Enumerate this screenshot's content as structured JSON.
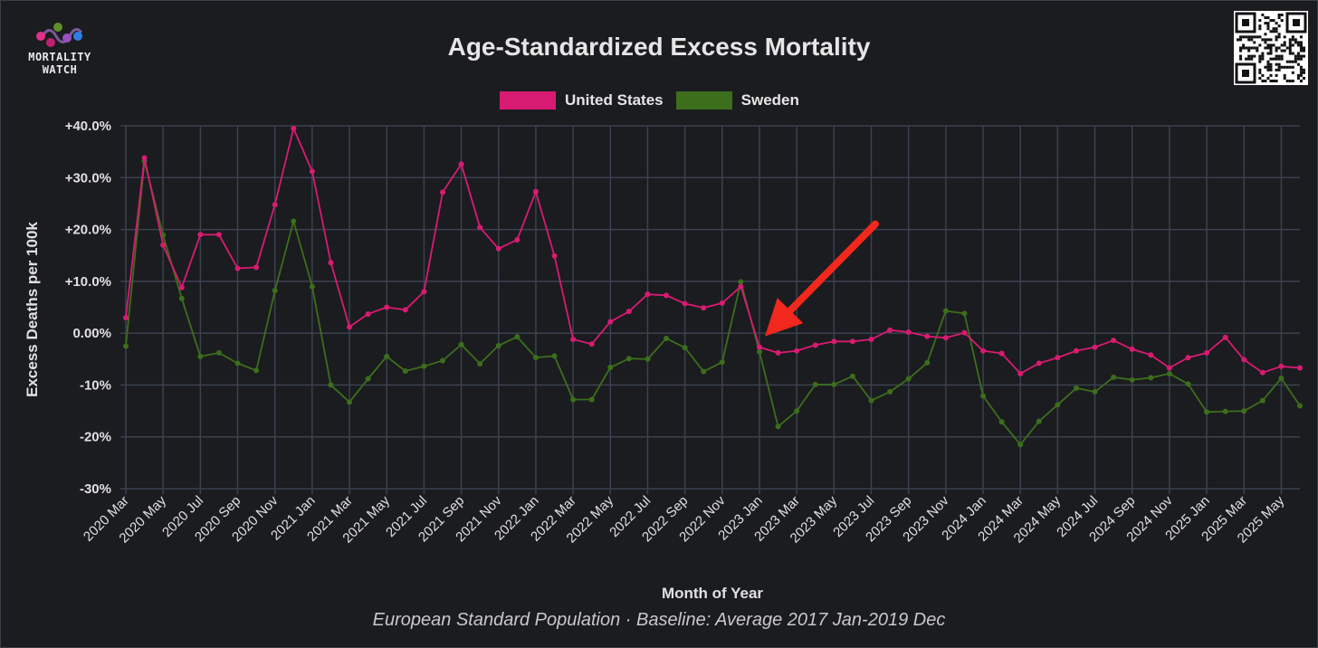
{
  "header": {
    "logo_line1": "MORTALITY",
    "logo_line2": "WATCH",
    "footer": "European Standard Population · Baseline: Average 2017 Jan-2019 Dec"
  },
  "colors": {
    "background": "#1b1c1f",
    "grid": "#3a4150",
    "text": "#e6e6e6",
    "us": "#d81b72",
    "sweden": "#3c6e1c",
    "arrow": "#f0281e"
  },
  "chart_data": {
    "type": "line",
    "title": "Age-Standardized Excess Mortality",
    "xlabel": "Month of Year",
    "ylabel": "Excess Deaths per 100k",
    "ylim": [
      -30,
      40
    ],
    "yticks": [
      "+40.0%",
      "+30.0%",
      "+20.0%",
      "+10.0%",
      "0.00%",
      "-10%",
      "-20%",
      "-30%"
    ],
    "ytick_values": [
      40,
      30,
      20,
      10,
      0,
      -10,
      -20,
      -30
    ],
    "xtick_labels": [
      "2020 Mar",
      "2020 May",
      "2020 Jul",
      "2020 Sep",
      "2020 Nov",
      "2021 Jan",
      "2021 Mar",
      "2021 May",
      "2021 Jul",
      "2021 Sep",
      "2021 Nov",
      "2022 Jan",
      "2022 Mar",
      "2022 May",
      "2022 Jul",
      "2022 Sep",
      "2022 Nov",
      "2023 Jan",
      "2023 Mar",
      "2023 May",
      "2023 Jul",
      "2023 Sep",
      "2023 Nov",
      "2024 Jan",
      "2024 Mar",
      "2024 May",
      "2024 Jul",
      "2024 Sep",
      "2024 Nov",
      "2025 Jan",
      "2025 Mar",
      "2025 May"
    ],
    "x": [
      "2020 Mar",
      "2020 Apr",
      "2020 May",
      "2020 Jun",
      "2020 Jul",
      "2020 Aug",
      "2020 Sep",
      "2020 Oct",
      "2020 Nov",
      "2020 Dec",
      "2021 Jan",
      "2021 Feb",
      "2021 Mar",
      "2021 Apr",
      "2021 May",
      "2021 Jun",
      "2021 Jul",
      "2021 Aug",
      "2021 Sep",
      "2021 Oct",
      "2021 Nov",
      "2021 Dec",
      "2022 Jan",
      "2022 Feb",
      "2022 Mar",
      "2022 Apr",
      "2022 May",
      "2022 Jun",
      "2022 Jul",
      "2022 Aug",
      "2022 Sep",
      "2022 Oct",
      "2022 Nov",
      "2022 Dec",
      "2023 Jan",
      "2023 Feb",
      "2023 Mar",
      "2023 Apr",
      "2023 May",
      "2023 Jun",
      "2023 Jul",
      "2023 Aug",
      "2023 Sep",
      "2023 Oct",
      "2023 Nov",
      "2023 Dec",
      "2024 Jan",
      "2024 Feb",
      "2024 Mar",
      "2024 Apr",
      "2024 May",
      "2024 Jun",
      "2024 Jul",
      "2024 Aug",
      "2024 Sep",
      "2024 Oct",
      "2024 Nov",
      "2024 Dec",
      "2025 Jan",
      "2025 Feb",
      "2025 Mar",
      "2025 Apr",
      "2025 May",
      "2025 Jun"
    ],
    "series": [
      {
        "name": "United States",
        "color": "#d81b72",
        "values": [
          3.0,
          33.8,
          17.0,
          8.8,
          19.0,
          19.0,
          12.5,
          12.7,
          24.8,
          39.5,
          31.2,
          13.6,
          1.2,
          3.7,
          5.0,
          4.5,
          8.0,
          27.2,
          32.6,
          20.4,
          16.3,
          18.0,
          27.3,
          14.9,
          -1.2,
          -2.1,
          2.2,
          4.2,
          7.5,
          7.3,
          5.7,
          4.9,
          5.8,
          9.0,
          -2.7,
          -3.8,
          -3.4,
          -2.3,
          -1.6,
          -1.6,
          -1.2,
          0.6,
          0.2,
          -0.6,
          -0.9,
          0.1,
          -3.4,
          -3.9,
          -7.8,
          -5.8,
          -4.7,
          -3.4,
          -2.7,
          -1.4,
          -3.1,
          -4.2,
          -6.7,
          -4.7,
          -3.8,
          -0.8,
          -5.1,
          -7.6,
          -6.4,
          -6.7
        ]
      },
      {
        "name": "Sweden",
        "color": "#3c6e1c",
        "values": [
          -2.5,
          33.2,
          18.9,
          6.7,
          -4.5,
          -3.8,
          -5.8,
          -7.2,
          8.2,
          21.6,
          9.0,
          -10.0,
          -13.3,
          -8.8,
          -4.5,
          -7.3,
          -6.4,
          -5.3,
          -2.2,
          -5.9,
          -2.4,
          -0.7,
          -4.7,
          -4.4,
          -12.8,
          -12.8,
          -6.6,
          -4.9,
          -5.0,
          -1.0,
          -2.8,
          -7.4,
          -5.6,
          9.9,
          -3.6,
          -18.0,
          -15.0,
          -9.9,
          -9.9,
          -8.3,
          -13.0,
          -11.3,
          -8.8,
          -5.7,
          4.3,
          3.8,
          -12.1,
          -17.1,
          -21.5,
          -17.0,
          -13.8,
          -10.6,
          -11.3,
          -8.5,
          -9.0,
          -8.6,
          -7.8,
          -9.8,
          -15.2,
          -15.1,
          -15.0,
          -13.0,
          -8.7,
          -14.0
        ]
      }
    ],
    "annotations": [
      {
        "type": "arrow",
        "target_x": "2023 Jan",
        "target_y": -2.7
      }
    ],
    "grid": true,
    "legend": "top-center"
  }
}
